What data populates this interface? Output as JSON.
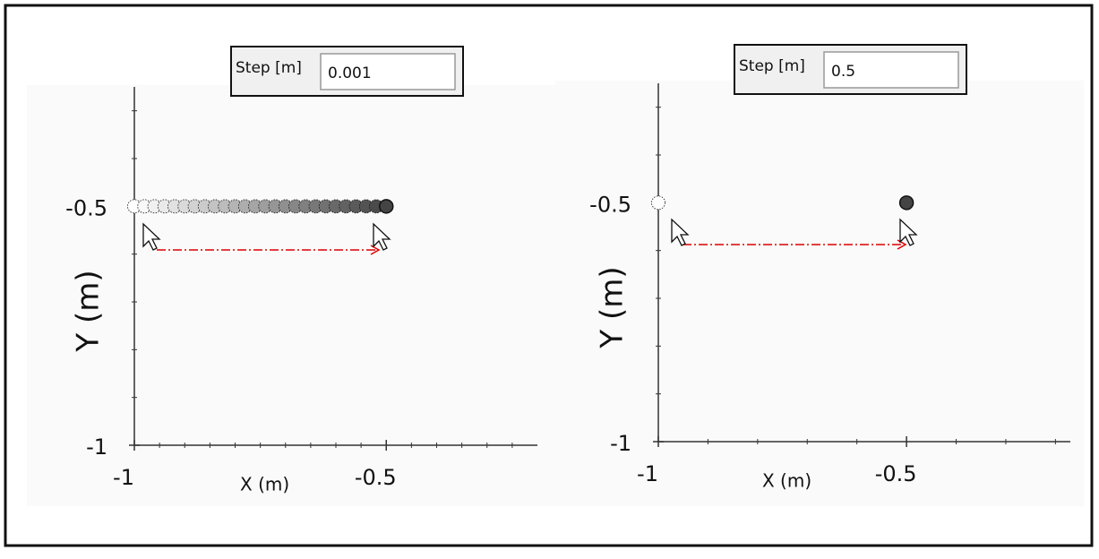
{
  "chart_data": [
    {
      "type": "scatter",
      "step_label": "Step [m]",
      "step_value": "0.001",
      "x": [
        -1,
        -0.98,
        -0.96,
        -0.94,
        -0.92,
        -0.9,
        -0.88,
        -0.86,
        -0.84,
        -0.82,
        -0.8,
        -0.78,
        -0.76,
        -0.74,
        -0.72,
        -0.7,
        -0.68,
        -0.66,
        -0.64,
        -0.62,
        -0.6,
        -0.58,
        -0.56,
        -0.54,
        -0.52,
        -0.5
      ],
      "y": [
        -0.5,
        -0.5,
        -0.5,
        -0.5,
        -0.5,
        -0.5,
        -0.5,
        -0.5,
        -0.5,
        -0.5,
        -0.5,
        -0.5,
        -0.5,
        -0.5,
        -0.5,
        -0.5,
        -0.5,
        -0.5,
        -0.5,
        -0.5,
        -0.5,
        -0.5,
        -0.5,
        -0.5,
        -0.5,
        -0.5
      ],
      "start_color": "#ffffff",
      "end_color": "#444444",
      "xlabel": "X (m)",
      "ylabel": "Y (m)",
      "xlim": [
        -1,
        -0.2
      ],
      "ylim": [
        -1,
        -0.25
      ],
      "xticks": [
        -1,
        -0.5
      ],
      "yticks": [
        -1,
        -0.5
      ],
      "xminorticks": [
        -0.95,
        -0.9,
        -0.85,
        -0.8,
        -0.75,
        -0.7,
        -0.65,
        -0.6,
        -0.55,
        -0.45,
        -0.4,
        -0.35,
        -0.3,
        -0.25
      ],
      "yminorticks": [
        -0.9,
        -0.8,
        -0.7,
        -0.6,
        -0.4,
        -0.3
      ]
    },
    {
      "type": "scatter",
      "step_label": "Step [m]",
      "step_value": "0.5",
      "x": [
        -1,
        -0.5
      ],
      "y": [
        -0.5,
        -0.5
      ],
      "start_color": "#ffffff",
      "end_color": "#444444",
      "xlabel": "X (m)",
      "ylabel": "Y (m)",
      "xlim": [
        -1,
        -0.17
      ],
      "ylim": [
        -1,
        -0.25
      ],
      "xticks": [
        -1,
        -0.5
      ],
      "yticks": [
        -1,
        -0.5
      ],
      "xminorticks": [
        -0.9,
        -0.8,
        -0.7,
        -0.6,
        -0.4,
        -0.3,
        -0.2
      ],
      "yminorticks": [
        -0.9,
        -0.8,
        -0.7,
        -0.6,
        -0.4,
        -0.3
      ]
    }
  ]
}
